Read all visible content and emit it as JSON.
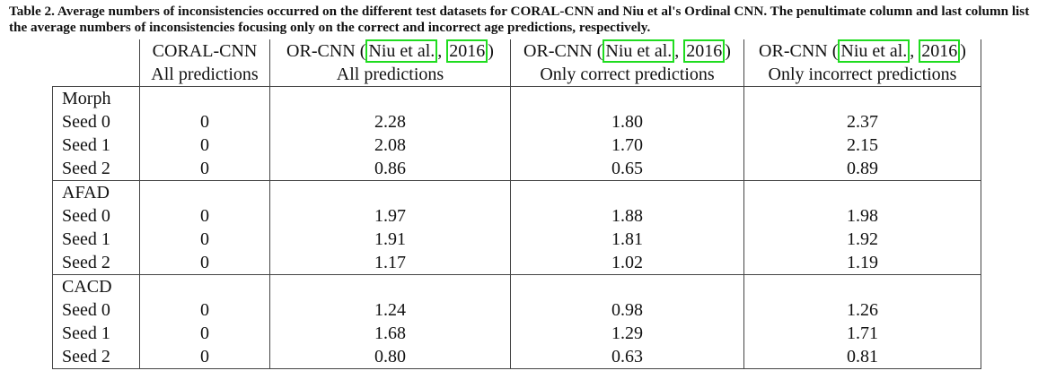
{
  "caption": "Table 2. Average numbers of inconsistencies occurred on the different test datasets for CORAL-CNN and Niu et al's Ordinal CNN. The penultimate column and last column list the average numbers of inconsistencies focusing only on the correct and incorrect age predictions, respectively.",
  "table": {
    "columns": [
      {
        "title": "CORAL-CNN",
        "subtitle": "All predictions"
      },
      {
        "before": "OR-CNN (",
        "author": "Niu et al.",
        "sep": ", ",
        "year": "2016",
        "after": ")",
        "subtitle": "All predictions"
      },
      {
        "before": "OR-CNN (",
        "author": "Niu et al.",
        "sep": ", ",
        "year": "2016",
        "after": ")",
        "subtitle": "Only correct predictions"
      },
      {
        "before": "OR-CNN (",
        "author": "Niu et al.",
        "sep": ", ",
        "year": "2016",
        "after": ")",
        "subtitle": "Only incorrect predictions"
      }
    ],
    "groups": [
      {
        "name": "Morph",
        "rows": [
          {
            "label": "Seed 0",
            "cells": [
              "0",
              "2.28",
              "1.80",
              "2.37"
            ]
          },
          {
            "label": "Seed 1",
            "cells": [
              "0",
              "2.08",
              "1.70",
              "2.15"
            ]
          },
          {
            "label": "Seed 2",
            "cells": [
              "0",
              "0.86",
              "0.65",
              "0.89"
            ]
          }
        ]
      },
      {
        "name": "AFAD",
        "rows": [
          {
            "label": "Seed 0",
            "cells": [
              "0",
              "1.97",
              "1.88",
              "1.98"
            ]
          },
          {
            "label": "Seed 1",
            "cells": [
              "0",
              "1.91",
              "1.81",
              "1.92"
            ]
          },
          {
            "label": "Seed 2",
            "cells": [
              "0",
              "1.17",
              "1.02",
              "1.19"
            ]
          }
        ]
      },
      {
        "name": "CACD",
        "rows": [
          {
            "label": "Seed 0",
            "cells": [
              "0",
              "1.24",
              "0.98",
              "1.26"
            ]
          },
          {
            "label": "Seed 1",
            "cells": [
              "0",
              "1.68",
              "1.29",
              "1.71"
            ]
          },
          {
            "label": "Seed 2",
            "cells": [
              "0",
              "0.80",
              "0.63",
              "0.81"
            ]
          }
        ]
      }
    ]
  }
}
